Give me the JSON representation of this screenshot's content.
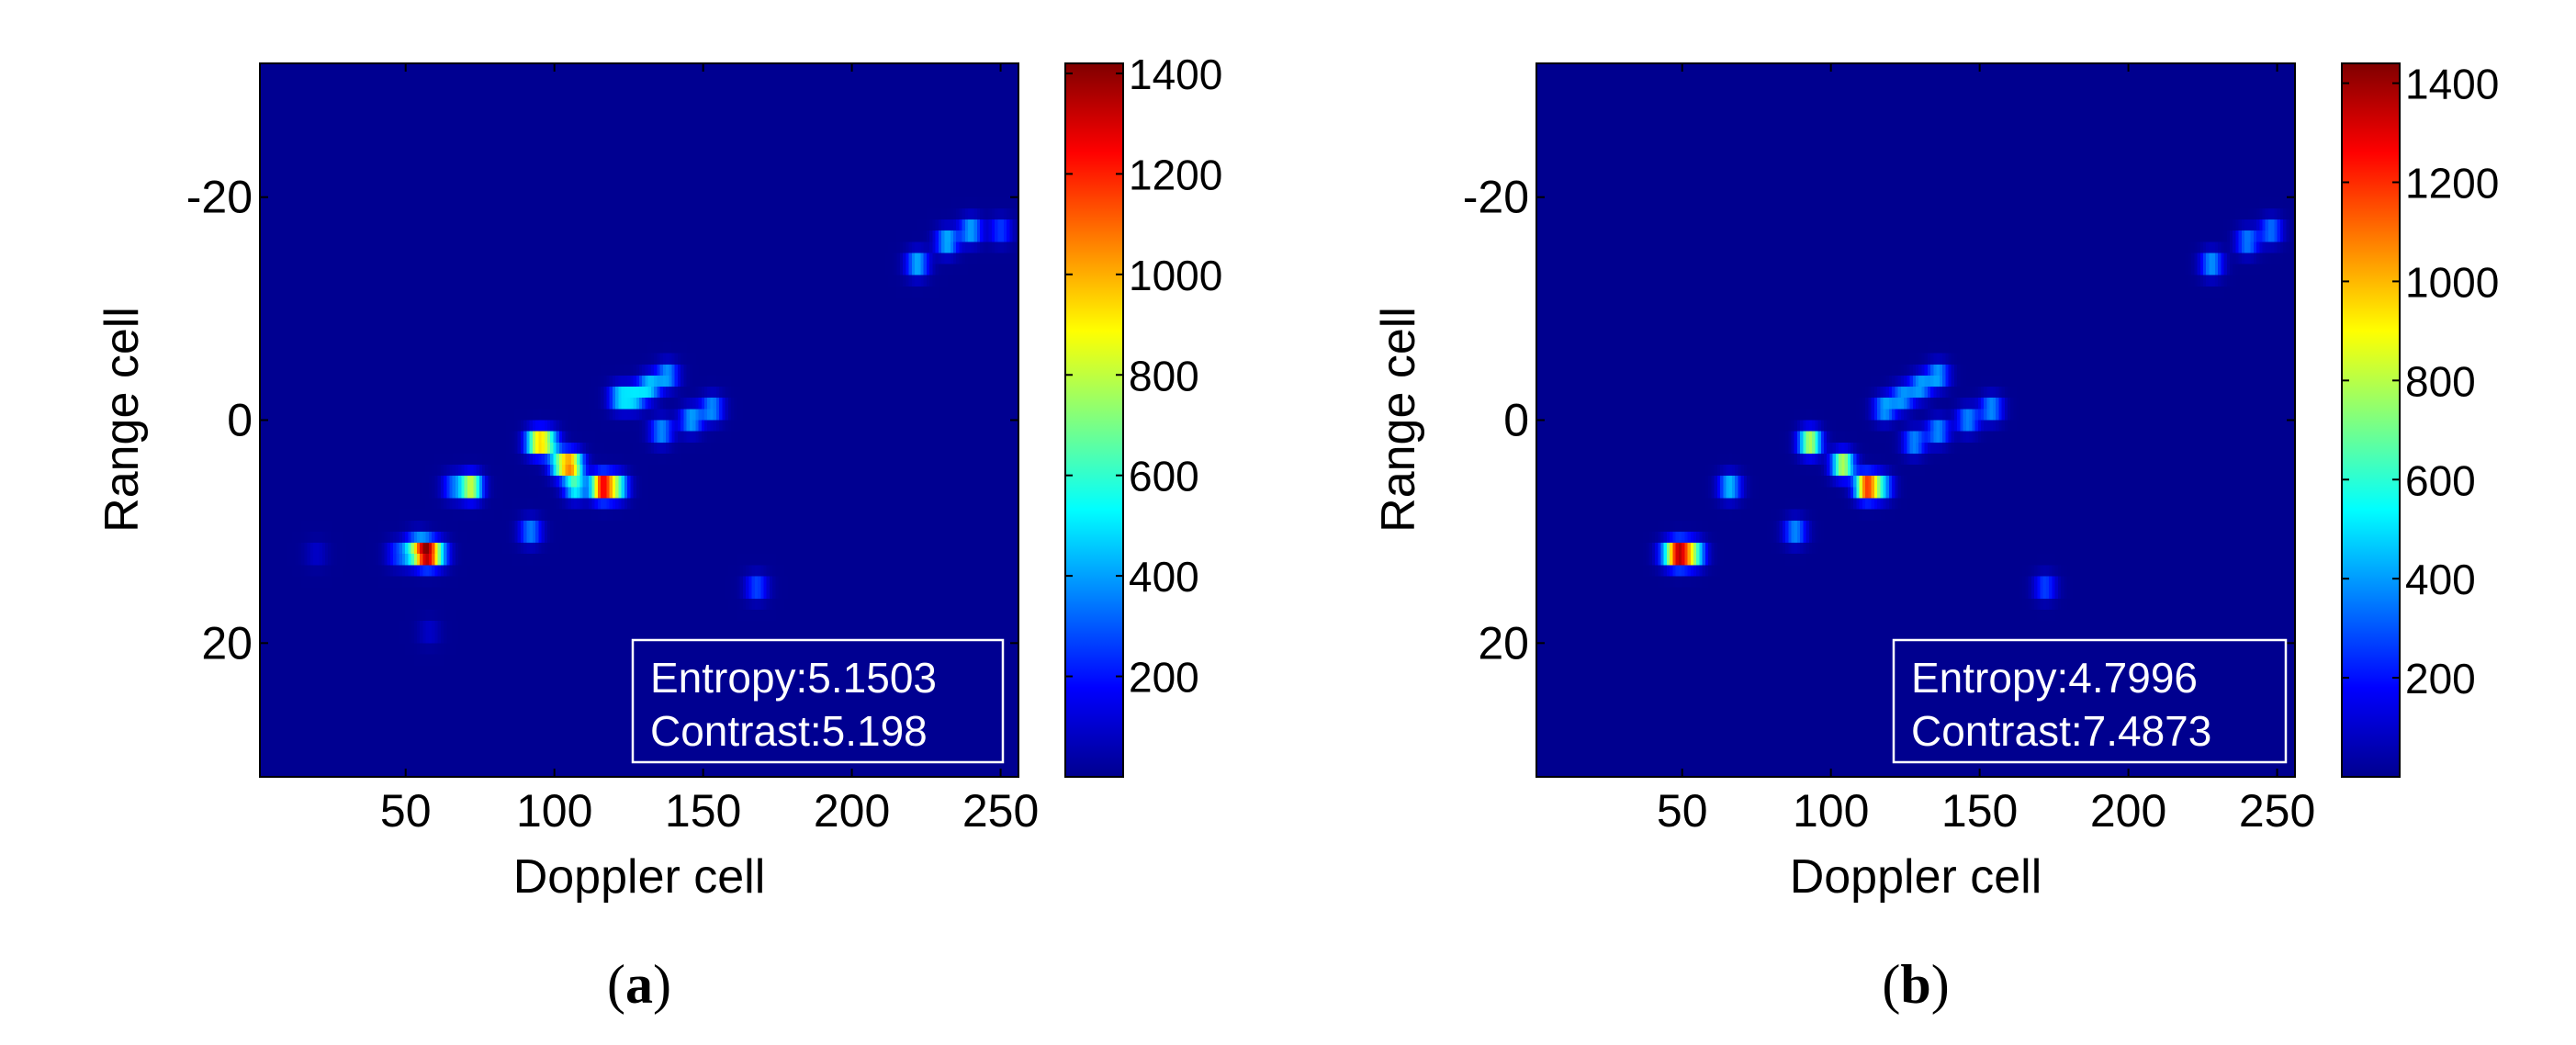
{
  "chart_data": [
    {
      "type": "heatmap",
      "panel_label": "(a)",
      "panel_letter": "a",
      "xlabel": "Doppler cell",
      "ylabel": "Range cell",
      "xlim": [
        1,
        256
      ],
      "ylim": [
        -32,
        32
      ],
      "y_reversed": true,
      "xticks": [
        50,
        100,
        150,
        200,
        250
      ],
      "yticks": [
        -20,
        0,
        20
      ],
      "colorbar": {
        "range": [
          0,
          1420
        ],
        "ticks": [
          200,
          400,
          600,
          800,
          1000,
          1200,
          1400
        ],
        "colormap": "jet"
      },
      "annotation": [
        "Entropy:5.1503",
        "Contrast:5.198"
      ],
      "background_value": 25,
      "scatterers": [
        {
          "x": 57,
          "y": 12,
          "value": 1400
        },
        {
          "x": 52,
          "y": 12,
          "value": 420
        },
        {
          "x": 61,
          "y": 12,
          "value": 480
        },
        {
          "x": 47,
          "y": 12,
          "value": 220
        },
        {
          "x": 20,
          "y": 12,
          "value": 90
        },
        {
          "x": 54,
          "y": 11,
          "value": 250
        },
        {
          "x": 72,
          "y": 6,
          "value": 950
        },
        {
          "x": 66,
          "y": 6,
          "value": 320
        },
        {
          "x": 94,
          "y": 2,
          "value": 880
        },
        {
          "x": 98,
          "y": 2,
          "value": 600
        },
        {
          "x": 106,
          "y": 4,
          "value": 950
        },
        {
          "x": 102,
          "y": 4,
          "value": 650
        },
        {
          "x": 116,
          "y": 6,
          "value": 1400
        },
        {
          "x": 121,
          "y": 6,
          "value": 700
        },
        {
          "x": 107,
          "y": 6,
          "value": 600
        },
        {
          "x": 92,
          "y": 10,
          "value": 400
        },
        {
          "x": 136,
          "y": 1,
          "value": 420
        },
        {
          "x": 146,
          "y": 0,
          "value": 450
        },
        {
          "x": 153,
          "y": -1,
          "value": 420
        },
        {
          "x": 122,
          "y": -2,
          "value": 480
        },
        {
          "x": 127,
          "y": -2,
          "value": 450
        },
        {
          "x": 132,
          "y": -3,
          "value": 480
        },
        {
          "x": 138,
          "y": -4,
          "value": 430
        },
        {
          "x": 168,
          "y": 15,
          "value": 300
        },
        {
          "x": 222,
          "y": -14,
          "value": 480
        },
        {
          "x": 232,
          "y": -16,
          "value": 480
        },
        {
          "x": 240,
          "y": -17,
          "value": 460
        },
        {
          "x": 250,
          "y": -17,
          "value": 280
        },
        {
          "x": 58,
          "y": 19,
          "value": 90
        }
      ]
    },
    {
      "type": "heatmap",
      "panel_label": "(b)",
      "panel_letter": "b",
      "xlabel": "Doppler cell",
      "ylabel": "Range cell",
      "xlim": [
        1,
        256
      ],
      "ylim": [
        -32,
        32
      ],
      "y_reversed": true,
      "xticks": [
        50,
        100,
        150,
        200,
        250
      ],
      "yticks": [
        -20,
        0,
        20
      ],
      "colorbar": {
        "range": [
          0,
          1440
        ],
        "ticks": [
          200,
          400,
          600,
          800,
          1000,
          1200,
          1400
        ],
        "colormap": "jet"
      },
      "annotation": [
        "Entropy:4.7996",
        "Contrast:7.4873"
      ],
      "background_value": 22,
      "scatterers": [
        {
          "x": 49,
          "y": 12,
          "value": 1440
        },
        {
          "x": 54,
          "y": 12,
          "value": 750
        },
        {
          "x": 45,
          "y": 12,
          "value": 350
        },
        {
          "x": 66,
          "y": 6,
          "value": 520
        },
        {
          "x": 88,
          "y": 10,
          "value": 430
        },
        {
          "x": 93,
          "y": 2,
          "value": 950
        },
        {
          "x": 104,
          "y": 4,
          "value": 950
        },
        {
          "x": 112,
          "y": 6,
          "value": 1350
        },
        {
          "x": 117,
          "y": 6,
          "value": 520
        },
        {
          "x": 118,
          "y": -1,
          "value": 450
        },
        {
          "x": 124,
          "y": -2,
          "value": 420
        },
        {
          "x": 130,
          "y": -3,
          "value": 430
        },
        {
          "x": 136,
          "y": -4,
          "value": 450
        },
        {
          "x": 128,
          "y": 2,
          "value": 420
        },
        {
          "x": 136,
          "y": 1,
          "value": 430
        },
        {
          "x": 146,
          "y": 0,
          "value": 420
        },
        {
          "x": 154,
          "y": -1,
          "value": 430
        },
        {
          "x": 172,
          "y": 15,
          "value": 300
        },
        {
          "x": 228,
          "y": -14,
          "value": 450
        },
        {
          "x": 240,
          "y": -16,
          "value": 400
        },
        {
          "x": 248,
          "y": -17,
          "value": 380
        }
      ]
    }
  ]
}
